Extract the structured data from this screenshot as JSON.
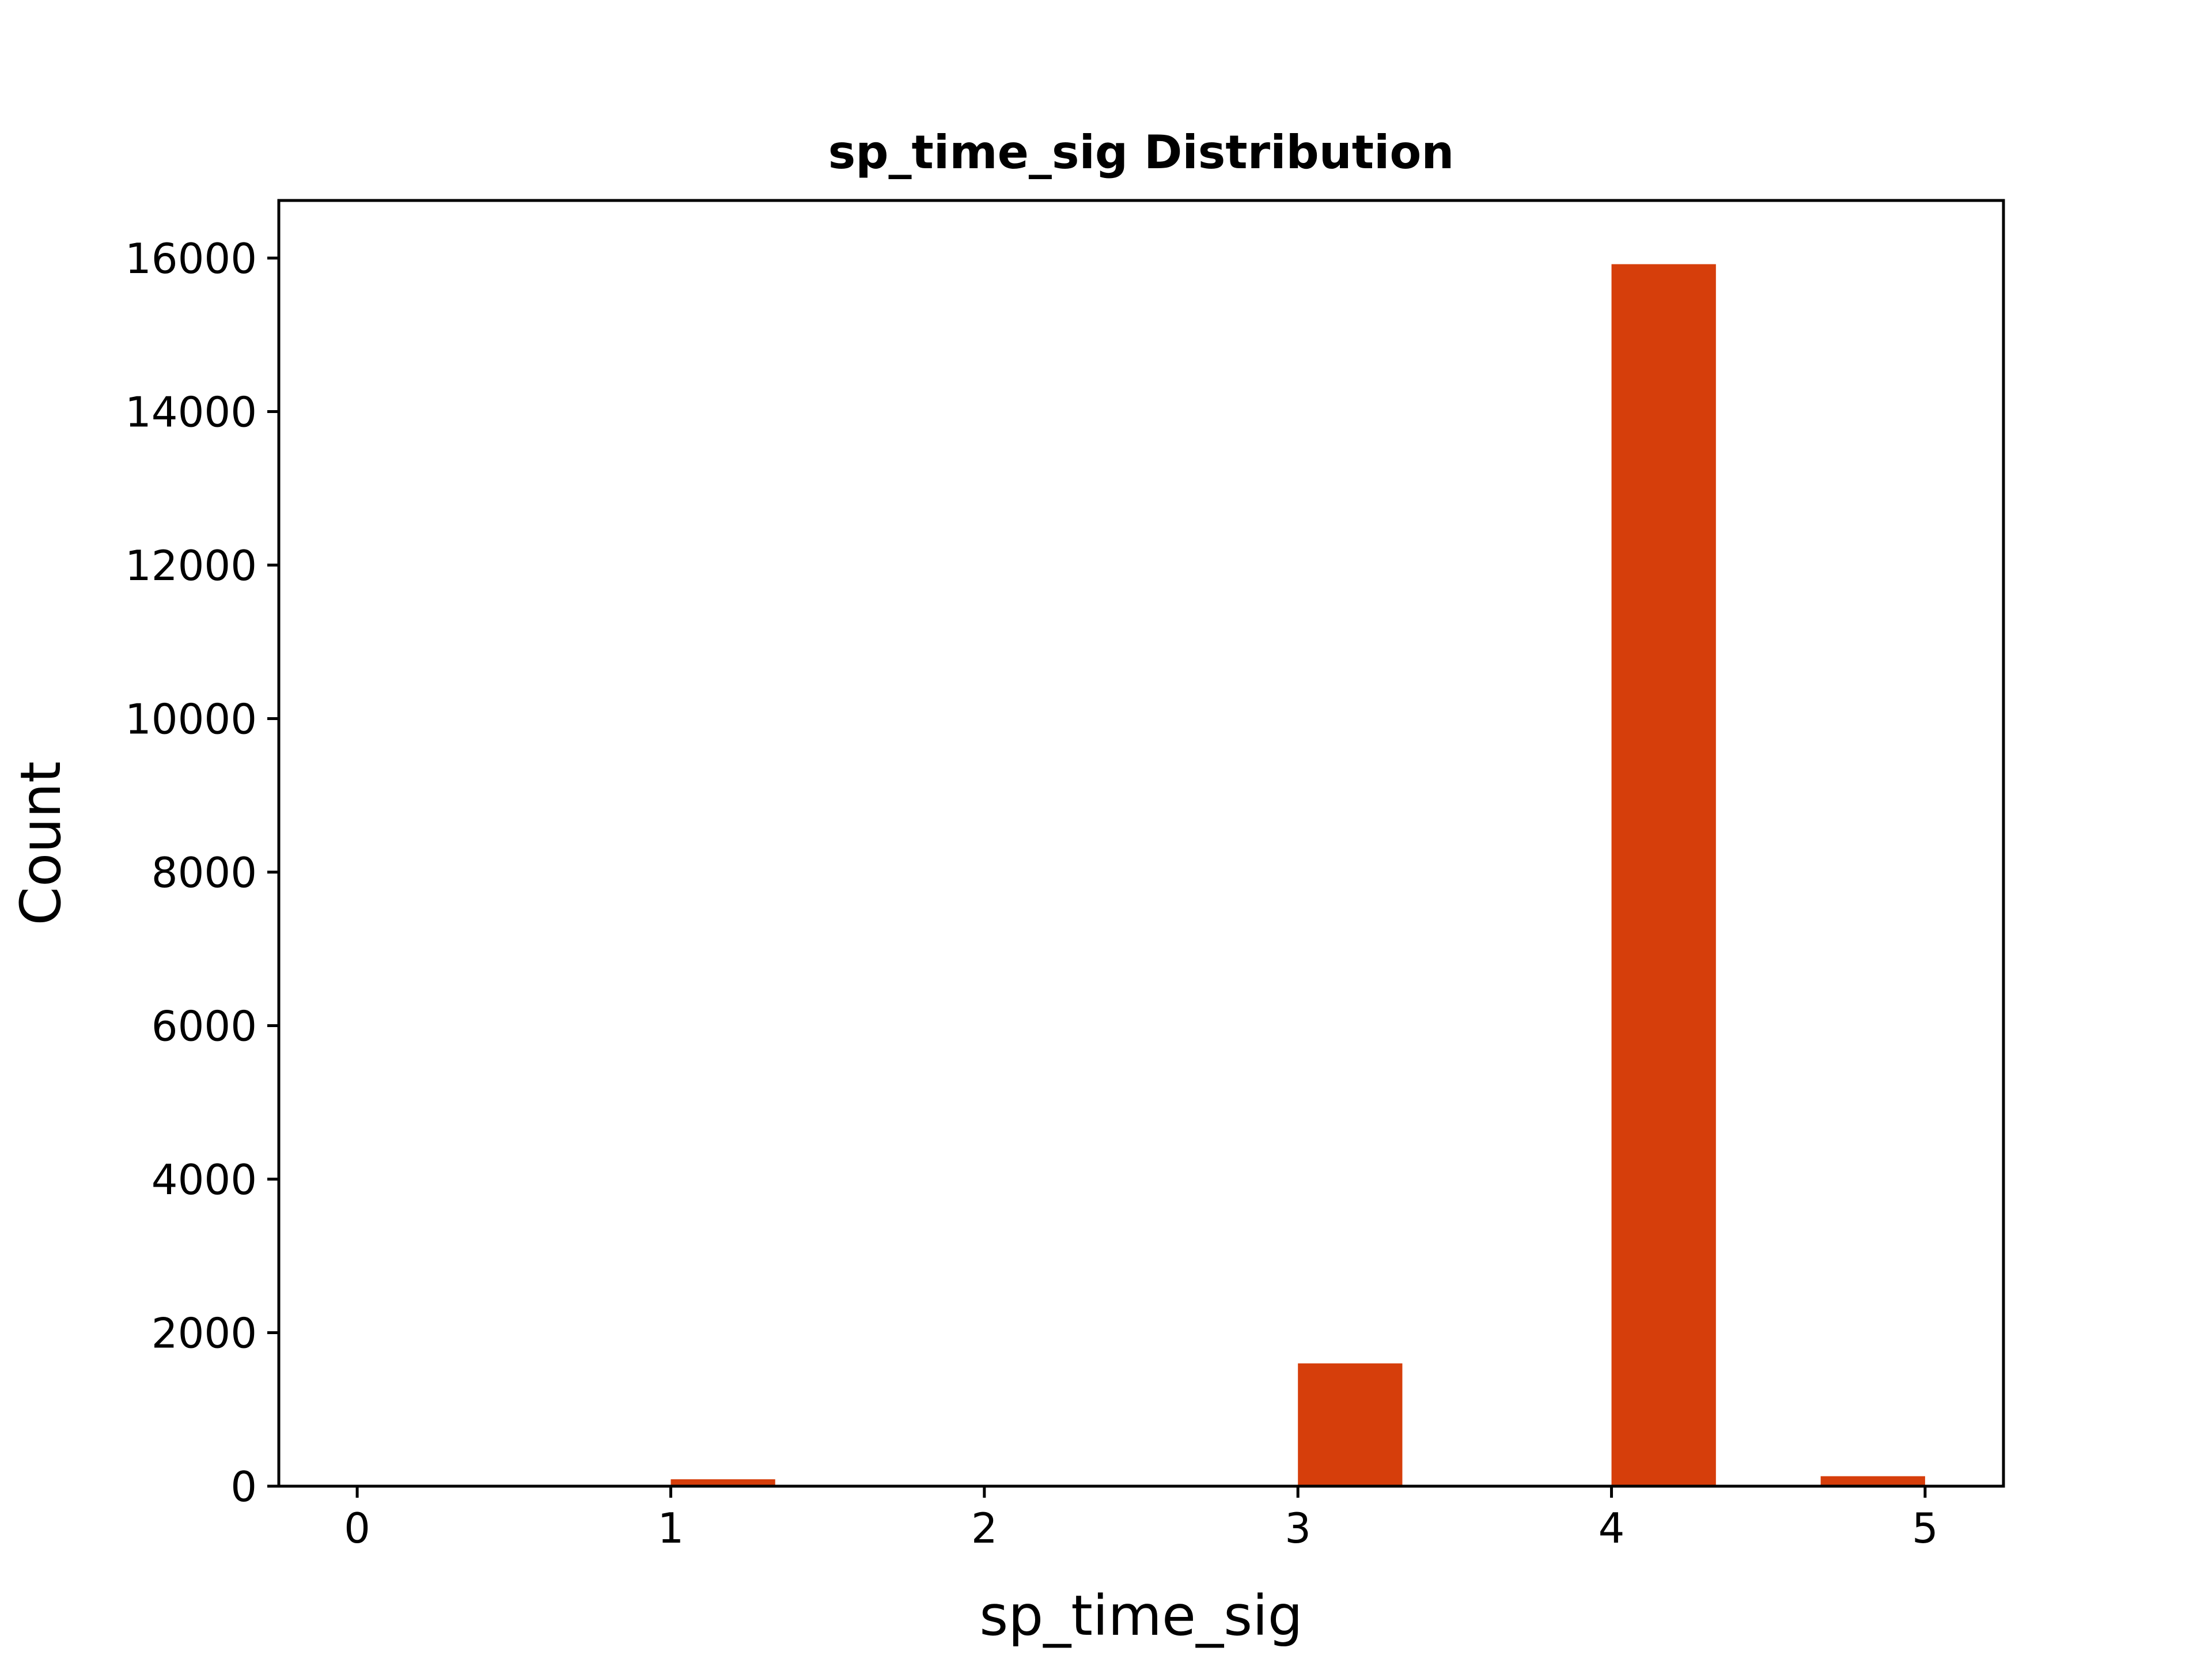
{
  "chart_data": {
    "type": "bar",
    "title": "sp_time_sig Distribution",
    "xlabel": "sp_time_sig",
    "ylabel": "Count",
    "bar_color": "#d63e0b",
    "xlim": [
      -0.25,
      5.25
    ],
    "ylim": [
      0,
      16750
    ],
    "x_ticks": [
      0,
      1,
      2,
      3,
      4,
      5
    ],
    "y_ticks": [
      0,
      2000,
      4000,
      6000,
      8000,
      10000,
      12000,
      14000,
      16000
    ],
    "bars": [
      {
        "x_start": 1.0,
        "x_end": 1.333,
        "value": 90
      },
      {
        "x_start": 3.0,
        "x_end": 3.333,
        "value": 1600
      },
      {
        "x_start": 4.0,
        "x_end": 4.333,
        "value": 15920
      },
      {
        "x_start": 4.667,
        "x_end": 5.0,
        "value": 130
      }
    ],
    "grid": false,
    "legend": "none"
  }
}
